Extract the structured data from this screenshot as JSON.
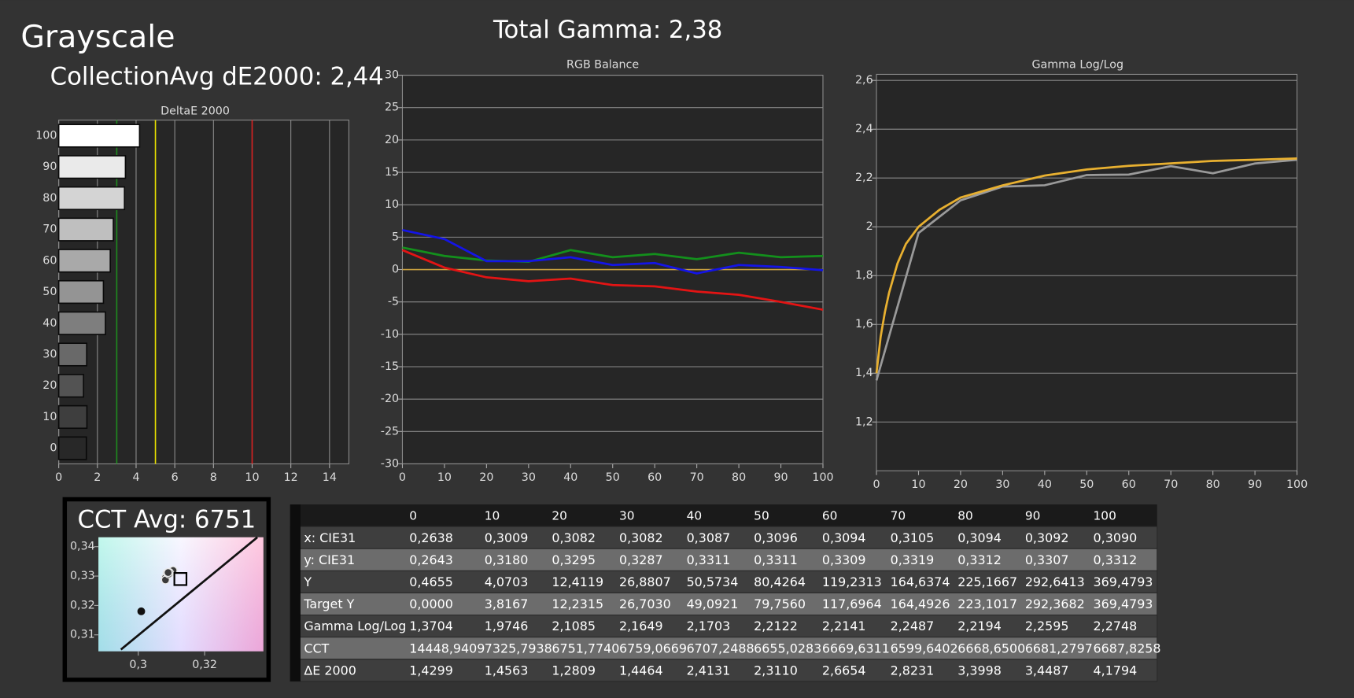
{
  "header": {
    "title": "Grayscale",
    "subtitle": "CollectionAvg dE2000: 2,44",
    "total_gamma": "Total Gamma: 2,38"
  },
  "chart_data": [
    {
      "type": "bar",
      "orientation": "horizontal",
      "title": "DeltaE 2000",
      "categories": [
        "0",
        "10",
        "20",
        "30",
        "40",
        "50",
        "60",
        "70",
        "80",
        "90",
        "100"
      ],
      "values": [
        1.4299,
        1.4563,
        1.2809,
        1.4464,
        2.4131,
        2.311,
        2.6654,
        2.8231,
        3.3998,
        3.4487,
        4.1794
      ],
      "xlim": [
        0,
        15
      ],
      "xticks": [
        0,
        2,
        4,
        6,
        8,
        10,
        12,
        14
      ],
      "grid": true,
      "reference_lines": [
        {
          "value": 3,
          "color": "#1f8a1f"
        },
        {
          "value": 5,
          "color": "#e8e000"
        },
        {
          "value": 10,
          "color": "#d42020"
        }
      ]
    },
    {
      "type": "line",
      "title": "RGB Balance",
      "x": [
        0,
        10,
        20,
        30,
        40,
        50,
        60,
        70,
        80,
        90,
        100
      ],
      "series": [
        {
          "color": "#c8a040",
          "values": [
            0,
            0,
            0,
            0,
            0,
            0,
            0,
            0,
            0,
            0,
            0
          ]
        },
        {
          "color": "#13901c",
          "values": [
            3.4,
            2.1,
            1.4,
            1.2,
            3.0,
            1.9,
            2.4,
            1.6,
            2.6,
            1.9,
            2.1
          ]
        },
        {
          "color": "#1414e6",
          "values": [
            6.1,
            4.7,
            1.3,
            1.3,
            1.9,
            0.7,
            1.0,
            -0.6,
            0.7,
            0.4,
            -0.1
          ]
        },
        {
          "color": "#e31414",
          "values": [
            3.0,
            0.3,
            -1.2,
            -1.8,
            -1.4,
            -2.4,
            -2.6,
            -3.4,
            -3.9,
            -5.0,
            -6.2
          ]
        }
      ],
      "xlim": [
        0,
        100
      ],
      "xticks": [
        0,
        10,
        20,
        30,
        40,
        50,
        60,
        70,
        80,
        90,
        100
      ],
      "ylim": [
        -30,
        30
      ],
      "yticks": [
        -30,
        -25,
        -20,
        -15,
        -10,
        -5,
        0,
        5,
        10,
        15,
        20,
        25,
        30
      ],
      "grid": true
    },
    {
      "type": "line",
      "title": "Gamma Log/Log",
      "series": [
        {
          "color": "#9a9a9a",
          "x": [
            0,
            10,
            20,
            30,
            40,
            50,
            60,
            70,
            80,
            90,
            100
          ],
          "values": [
            1.3704,
            1.9746,
            2.1085,
            2.1649,
            2.1703,
            2.2122,
            2.2141,
            2.2487,
            2.2194,
            2.2595,
            2.2748
          ]
        },
        {
          "color": "#e8b030",
          "x": [
            0,
            1,
            2,
            3,
            5,
            7,
            10,
            15,
            20,
            30,
            40,
            50,
            60,
            70,
            80,
            90,
            100
          ],
          "values": [
            1.4,
            1.55,
            1.65,
            1.73,
            1.85,
            1.93,
            2.0,
            2.07,
            2.12,
            2.17,
            2.21,
            2.235,
            2.25,
            2.26,
            2.27,
            2.275,
            2.28
          ]
        }
      ],
      "xlim": [
        0,
        100
      ],
      "xticks": [
        0,
        10,
        20,
        30,
        40,
        50,
        60,
        70,
        80,
        90,
        100
      ],
      "ylim": [
        1.0,
        2.625
      ],
      "yticks": [
        {
          "value": 1.2,
          "label": "1,2"
        },
        {
          "value": 1.4,
          "label": "1,4"
        },
        {
          "value": 1.6,
          "label": "1,6"
        },
        {
          "value": 1.8,
          "label": "1,8"
        },
        2,
        {
          "value": 2.2,
          "label": "2,2"
        },
        {
          "value": 2.4,
          "label": "2,4"
        },
        {
          "value": 2.6,
          "label": "2,6"
        }
      ],
      "grid": true
    },
    {
      "type": "scatter",
      "title": "CCT Avg: 6751",
      "series": [
        {
          "color": "#3a3a3a",
          "marker": "circle",
          "x": [
            0.3009,
            0.3082,
            0.3082,
            0.3087,
            0.3096,
            0.3094,
            0.3105,
            0.3094,
            0.3092,
            0.309
          ],
          "values": [
            0.318,
            0.3295,
            0.3287,
            0.3311,
            0.3311,
            0.3309,
            0.3319,
            0.3312,
            0.3307,
            0.3312
          ]
        },
        {
          "color": "#ffffff",
          "marker": "square",
          "x": [
            0.3127
          ],
          "values": [
            0.329
          ]
        }
      ],
      "xlim": [
        0.288,
        0.3377
      ],
      "xticks": [
        {
          "value": 0.3,
          "label": "0,3"
        },
        {
          "value": 0.32,
          "label": "0,32"
        }
      ],
      "ylim": [
        0.3044,
        0.3432
      ],
      "yticks": [
        {
          "value": 0.31,
          "label": "0,31"
        },
        {
          "value": 0.32,
          "label": "0,32"
        },
        {
          "value": 0.33,
          "label": "0,33"
        },
        {
          "value": 0.34,
          "label": "0,34"
        }
      ],
      "grid": false
    }
  ],
  "table": {
    "header": [
      "0",
      "10",
      "20",
      "30",
      "40",
      "50",
      "60",
      "70",
      "80",
      "90",
      "100"
    ],
    "rows": [
      [
        "x: CIE31",
        "0,2638",
        "0,3009",
        "0,3082",
        "0,3082",
        "0,3087",
        "0,3096",
        "0,3094",
        "0,3105",
        "0,3094",
        "0,3092",
        "0,3090"
      ],
      [
        "y: CIE31",
        "0,2643",
        "0,3180",
        "0,3295",
        "0,3287",
        "0,3311",
        "0,3311",
        "0,3309",
        "0,3319",
        "0,3312",
        "0,3307",
        "0,3312"
      ],
      [
        "Y",
        "0,4655",
        "4,0703",
        "12,4119",
        "26,8807",
        "50,5734",
        "80,4264",
        "119,2313",
        "164,6374",
        "225,1667",
        "292,6413",
        "369,4793"
      ],
      [
        "Target Y",
        "0,0000",
        "3,8167",
        "12,2315",
        "26,7030",
        "49,0921",
        "79,7560",
        "117,6964",
        "164,4926",
        "223,1017",
        "292,3682",
        "369,4793"
      ],
      [
        "Gamma Log/Log",
        "1,3704",
        "1,9746",
        "2,1085",
        "2,1649",
        "2,1703",
        "2,2122",
        "2,2141",
        "2,2487",
        "2,2194",
        "2,2595",
        "2,2748"
      ],
      [
        "CCT",
        "14448,9409",
        "7325,7938",
        "6751,7740",
        "6759,0669",
        "6707,2488",
        "6655,0283",
        "6669,6311",
        "6599,6402",
        "6668,6500",
        "6681,2797",
        "6687,8258"
      ],
      [
        "ΔE 2000",
        "1,4299",
        "1,4563",
        "1,2809",
        "1,4464",
        "2,4131",
        "2,3110",
        "2,6654",
        "2,8231",
        "3,3998",
        "3,4487",
        "4,1794"
      ]
    ]
  }
}
